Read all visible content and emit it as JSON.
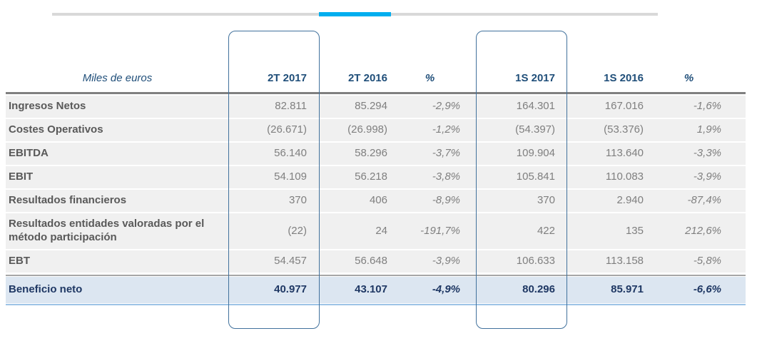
{
  "colors": {
    "accent_blue": "#00aeef",
    "divider_gray": "#d9d9d9",
    "header_navy": "#1f4e79",
    "row_gray": "#f0f0f0",
    "highlight_blue": "#dce6f1",
    "total_navy": "#1f3864",
    "total_line_blue": "#9dc3e6",
    "box_border": "#41719c"
  },
  "table": {
    "unit_label": "Miles de euros",
    "columns": [
      "2T 2017",
      "2T 2016",
      "%",
      "1S 2017",
      "1S 2016",
      "%"
    ],
    "rows": [
      {
        "label": "Ingresos Netos",
        "values": [
          "82.811",
          "85.294",
          "-2,9%",
          "164.301",
          "167.016",
          "-1,6%"
        ]
      },
      {
        "label": "Costes Operativos",
        "values": [
          "(26.671)",
          "(26.998)",
          "-1,2%",
          "(54.397)",
          "(53.376)",
          "1,9%"
        ]
      },
      {
        "label": "EBITDA",
        "values": [
          "56.140",
          "58.296",
          "-3,7%",
          "109.904",
          "113.640",
          "-3,3%"
        ]
      },
      {
        "label": "EBIT",
        "values": [
          "54.109",
          "56.218",
          "-3,8%",
          "105.841",
          "110.083",
          "-3,9%"
        ]
      },
      {
        "label": "Resultados financieros",
        "values": [
          "370",
          "406",
          "-8,9%",
          "370",
          "2.940",
          "-87,4%"
        ]
      },
      {
        "label": "Resultados entidades valoradas por el método participación",
        "values": [
          "(22)",
          "24",
          "-191,7%",
          "422",
          "135",
          "212,6%"
        ]
      },
      {
        "label": "EBT",
        "values": [
          "54.457",
          "56.648",
          "-3,9%",
          "106.633",
          "113.158",
          "-5,8%"
        ]
      }
    ],
    "total_row": {
      "label": "Beneficio neto",
      "values": [
        "40.977",
        "43.107",
        "-4,9%",
        "80.296",
        "85.971",
        "-6,6%"
      ]
    }
  }
}
